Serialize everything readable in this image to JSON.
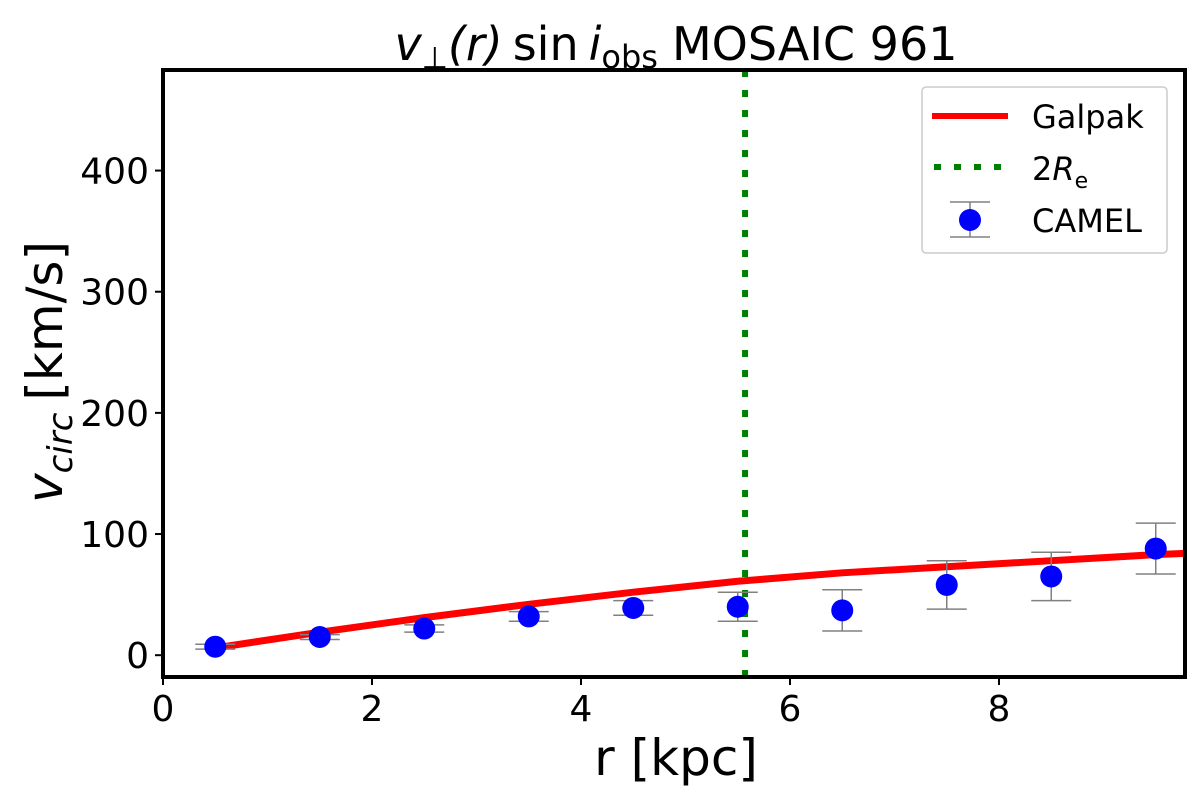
{
  "chart_data": {
    "type": "scatter",
    "title": {
      "v": "v",
      "perp": "⊥",
      "r": "(r)",
      "sin": "sin",
      "i": "i",
      "obs": "obs",
      "rest": "MOSAIC 961"
    },
    "xlabel": "r [kpc]",
    "ylabel": {
      "v": "v",
      "sub": "circ",
      "unit": "[km/s]"
    },
    "xlim": [
      0,
      9.78
    ],
    "ylim": [
      -18,
      483
    ],
    "xticks": [
      0,
      2,
      4,
      6,
      8
    ],
    "yticks": [
      0,
      100,
      200,
      300,
      400
    ],
    "grid": false,
    "legend_placement": "top-right",
    "legend": {
      "galpak": "Galpak",
      "re_num": "2",
      "re_R": "R",
      "re_sub": "e",
      "camel": "CAMEL"
    },
    "series": [
      {
        "name": "Galpak",
        "kind": "line",
        "color": "#ff0000",
        "x": [
          0.5,
          1.5,
          2.5,
          3.5,
          4.5,
          5.5,
          6.5,
          7.5,
          8.5,
          9.5,
          9.78
        ],
        "y": [
          6,
          19,
          31,
          42,
          52,
          61,
          68,
          73,
          78,
          83,
          84
        ]
      },
      {
        "name": "2R_e",
        "kind": "vline",
        "color": "#008000",
        "x": 5.57
      },
      {
        "name": "CAMEL",
        "kind": "errorbar",
        "color": "#0000ff",
        "errcolor": "#808080",
        "x": [
          0.5,
          1.5,
          2.5,
          3.5,
          4.5,
          5.5,
          6.5,
          7.5,
          8.5,
          9.5
        ],
        "y": [
          7,
          15,
          22,
          32,
          39,
          40,
          37,
          58,
          65,
          88
        ],
        "yerr": [
          2,
          2,
          3,
          4,
          6,
          12,
          17,
          20,
          20,
          21
        ]
      }
    ]
  }
}
